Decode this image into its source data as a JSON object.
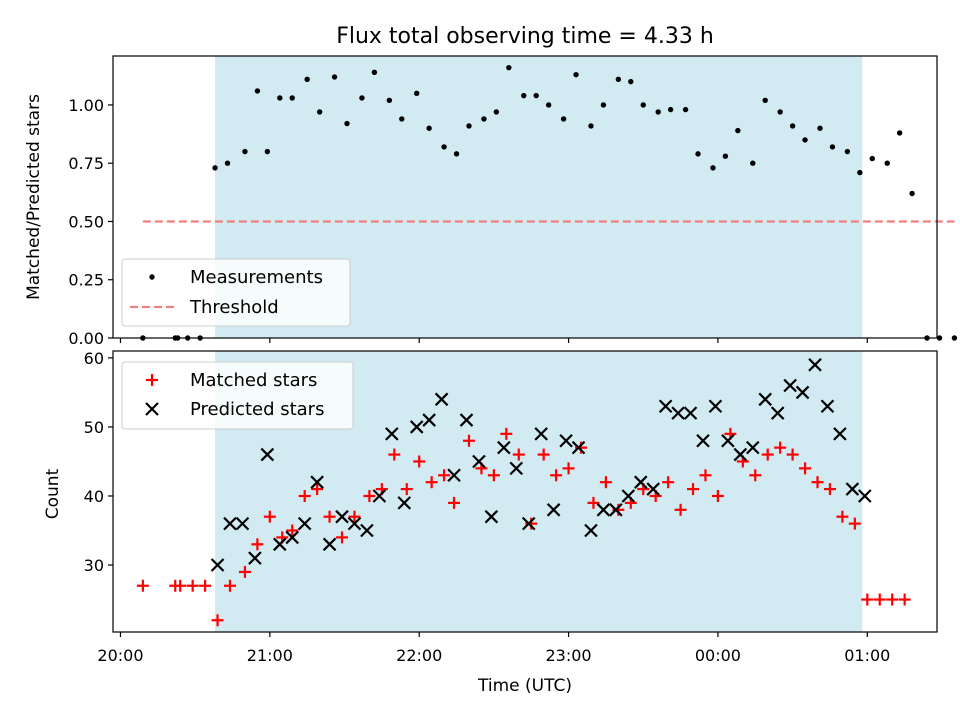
{
  "chart_data": [
    {
      "type": "scatter",
      "title": "Flux total observing time = 4.33 h",
      "xlabel": "",
      "ylabel": "Matched/Predicted stars",
      "xlim": [
        "19:57",
        "01:28"
      ],
      "ylim": [
        0,
        1.21
      ],
      "yticks": [
        0.0,
        0.25,
        0.5,
        0.75,
        1.0
      ],
      "ytick_labels": [
        "0.00",
        "0.25",
        "0.50",
        "0.75",
        "1.00"
      ],
      "grid": false,
      "legend_position": "lower-left",
      "shaded_span": {
        "from": "20:38",
        "to": "00:58",
        "color": "#add8e6"
      },
      "series": [
        {
          "name": "Measurements",
          "marker": "dot",
          "color": "#000000",
          "points": [
            [
              "20:09",
              0.0
            ],
            [
              "20:22",
              0.0
            ],
            [
              "20:23",
              0.0
            ],
            [
              "20:27",
              0.0
            ],
            [
              "20:32",
              0.0
            ],
            [
              "20:38",
              0.73
            ],
            [
              "20:43",
              0.75
            ],
            [
              "20:50",
              0.8
            ],
            [
              "20:55",
              1.06
            ],
            [
              "20:59",
              0.8
            ],
            [
              "21:04",
              1.03
            ],
            [
              "21:09",
              1.03
            ],
            [
              "21:15",
              1.11
            ],
            [
              "21:20",
              0.97
            ],
            [
              "21:26",
              1.12
            ],
            [
              "21:31",
              0.92
            ],
            [
              "21:37",
              1.03
            ],
            [
              "21:42",
              1.14
            ],
            [
              "21:48",
              1.02
            ],
            [
              "21:53",
              0.94
            ],
            [
              "21:59",
              1.05
            ],
            [
              "22:04",
              0.9
            ],
            [
              "22:10",
              0.82
            ],
            [
              "22:15",
              0.79
            ],
            [
              "22:20",
              0.91
            ],
            [
              "22:26",
              0.94
            ],
            [
              "22:31",
              0.97
            ],
            [
              "22:36",
              1.16
            ],
            [
              "22:42",
              1.04
            ],
            [
              "22:47",
              1.04
            ],
            [
              "22:52",
              1.0
            ],
            [
              "22:58",
              0.94
            ],
            [
              "23:03",
              1.13
            ],
            [
              "23:09",
              0.91
            ],
            [
              "23:14",
              1.0
            ],
            [
              "23:20",
              1.11
            ],
            [
              "23:25",
              1.1
            ],
            [
              "23:30",
              1.0
            ],
            [
              "23:36",
              0.97
            ],
            [
              "23:41",
              0.98
            ],
            [
              "23:47",
              0.98
            ],
            [
              "23:52",
              0.79
            ],
            [
              "23:58",
              0.73
            ],
            [
              "00:03",
              0.78
            ],
            [
              "00:08",
              0.89
            ],
            [
              "00:14",
              0.75
            ],
            [
              "00:19",
              1.02
            ],
            [
              "00:25",
              0.97
            ],
            [
              "00:30",
              0.91
            ],
            [
              "00:35",
              0.85
            ],
            [
              "00:41",
              0.9
            ],
            [
              "00:46",
              0.82
            ],
            [
              "00:52",
              0.8
            ],
            [
              "00:57",
              0.71
            ],
            [
              "01:02",
              0.77
            ],
            [
              "01:08",
              0.75
            ],
            [
              "01:13",
              0.88
            ],
            [
              "01:18",
              0.62
            ],
            [
              "01:24",
              0.0
            ],
            [
              "01:29",
              0.0
            ],
            [
              "01:35",
              0.0
            ]
          ]
        },
        {
          "name": "Threshold",
          "marker": "dashed-line",
          "color": "#f08080",
          "points": [
            [
              "20:09",
              0.5
            ],
            [
              "01:35",
              0.5
            ]
          ]
        }
      ]
    },
    {
      "type": "scatter",
      "title": "",
      "xlabel": "Time (UTC)",
      "ylabel": "Count",
      "xlim": [
        "19:57",
        "01:28"
      ],
      "ylim": [
        20.3,
        61
      ],
      "xticks": [
        "20:00",
        "21:00",
        "22:00",
        "23:00",
        "00:00",
        "01:00"
      ],
      "yticks": [
        30,
        40,
        50,
        60
      ],
      "ytick_labels": [
        "30",
        "40",
        "50",
        "60"
      ],
      "grid": false,
      "legend_position": "upper-left",
      "shaded_span": {
        "from": "20:38",
        "to": "00:58",
        "color": "#add8e6"
      },
      "series": [
        {
          "name": "Matched stars",
          "marker": "plus",
          "color": "#ff0000",
          "points": [
            [
              "20:09",
              27
            ],
            [
              "20:22",
              27
            ],
            [
              "20:24",
              27
            ],
            [
              "20:29",
              27
            ],
            [
              "20:34",
              27
            ],
            [
              "20:39",
              22
            ],
            [
              "20:44",
              27
            ],
            [
              "20:50",
              29
            ],
            [
              "20:55",
              33
            ],
            [
              "21:00",
              37
            ],
            [
              "21:05",
              34
            ],
            [
              "21:09",
              35
            ],
            [
              "21:14",
              40
            ],
            [
              "21:19",
              41
            ],
            [
              "21:24",
              37
            ],
            [
              "21:29",
              34
            ],
            [
              "21:34",
              37
            ],
            [
              "21:40",
              40
            ],
            [
              "21:45",
              41
            ],
            [
              "21:50",
              46
            ],
            [
              "21:55",
              41
            ],
            [
              "22:00",
              45
            ],
            [
              "22:05",
              42
            ],
            [
              "22:10",
              43
            ],
            [
              "22:14",
              39
            ],
            [
              "22:20",
              48
            ],
            [
              "22:25",
              44
            ],
            [
              "22:30",
              43
            ],
            [
              "22:35",
              49
            ],
            [
              "22:40",
              46
            ],
            [
              "22:45",
              36
            ],
            [
              "22:50",
              46
            ],
            [
              "22:55",
              43
            ],
            [
              "23:00",
              44
            ],
            [
              "23:05",
              47
            ],
            [
              "23:10",
              39
            ],
            [
              "23:15",
              42
            ],
            [
              "23:20",
              38
            ],
            [
              "23:25",
              39
            ],
            [
              "23:30",
              41
            ],
            [
              "23:35",
              40
            ],
            [
              "23:40",
              42
            ],
            [
              "23:45",
              38
            ],
            [
              "23:50",
              41
            ],
            [
              "23:55",
              43
            ],
            [
              "00:00",
              40
            ],
            [
              "00:05",
              49
            ],
            [
              "00:10",
              45
            ],
            [
              "00:15",
              43
            ],
            [
              "00:20",
              46
            ],
            [
              "00:25",
              47
            ],
            [
              "00:30",
              46
            ],
            [
              "00:35",
              44
            ],
            [
              "00:40",
              42
            ],
            [
              "00:45",
              41
            ],
            [
              "00:50",
              37
            ],
            [
              "00:55",
              36
            ],
            [
              "01:00",
              25
            ],
            [
              "01:05",
              25
            ],
            [
              "01:10",
              25
            ],
            [
              "01:15",
              25
            ]
          ]
        },
        {
          "name": "Predicted stars",
          "marker": "x",
          "color": "#000000",
          "points": [
            [
              "20:39",
              30
            ],
            [
              "20:44",
              36
            ],
            [
              "20:49",
              36
            ],
            [
              "20:54",
              31
            ],
            [
              "20:59",
              46
            ],
            [
              "21:04",
              33
            ],
            [
              "21:09",
              34
            ],
            [
              "21:14",
              36
            ],
            [
              "21:19",
              42
            ],
            [
              "21:24",
              33
            ],
            [
              "21:29",
              37
            ],
            [
              "21:34",
              36
            ],
            [
              "21:39",
              35
            ],
            [
              "21:44",
              40
            ],
            [
              "21:49",
              49
            ],
            [
              "21:54",
              39
            ],
            [
              "21:59",
              50
            ],
            [
              "22:04",
              51
            ],
            [
              "22:09",
              54
            ],
            [
              "22:14",
              43
            ],
            [
              "22:19",
              51
            ],
            [
              "22:24",
              45
            ],
            [
              "22:29",
              37
            ],
            [
              "22:34",
              47
            ],
            [
              "22:39",
              44
            ],
            [
              "22:44",
              36
            ],
            [
              "22:49",
              49
            ],
            [
              "22:54",
              38
            ],
            [
              "22:59",
              48
            ],
            [
              "23:04",
              47
            ],
            [
              "23:09",
              35
            ],
            [
              "23:14",
              38
            ],
            [
              "23:19",
              38
            ],
            [
              "23:24",
              40
            ],
            [
              "23:29",
              42
            ],
            [
              "23:34",
              41
            ],
            [
              "23:39",
              53
            ],
            [
              "23:44",
              52
            ],
            [
              "23:49",
              52
            ],
            [
              "23:54",
              48
            ],
            [
              "23:59",
              53
            ],
            [
              "00:04",
              48
            ],
            [
              "00:09",
              46
            ],
            [
              "00:14",
              47
            ],
            [
              "00:19",
              54
            ],
            [
              "00:24",
              52
            ],
            [
              "00:29",
              56
            ],
            [
              "00:34",
              55
            ],
            [
              "00:39",
              59
            ],
            [
              "00:44",
              53
            ],
            [
              "00:49",
              49
            ],
            [
              "00:54",
              41
            ],
            [
              "00:59",
              40
            ]
          ]
        }
      ]
    }
  ]
}
